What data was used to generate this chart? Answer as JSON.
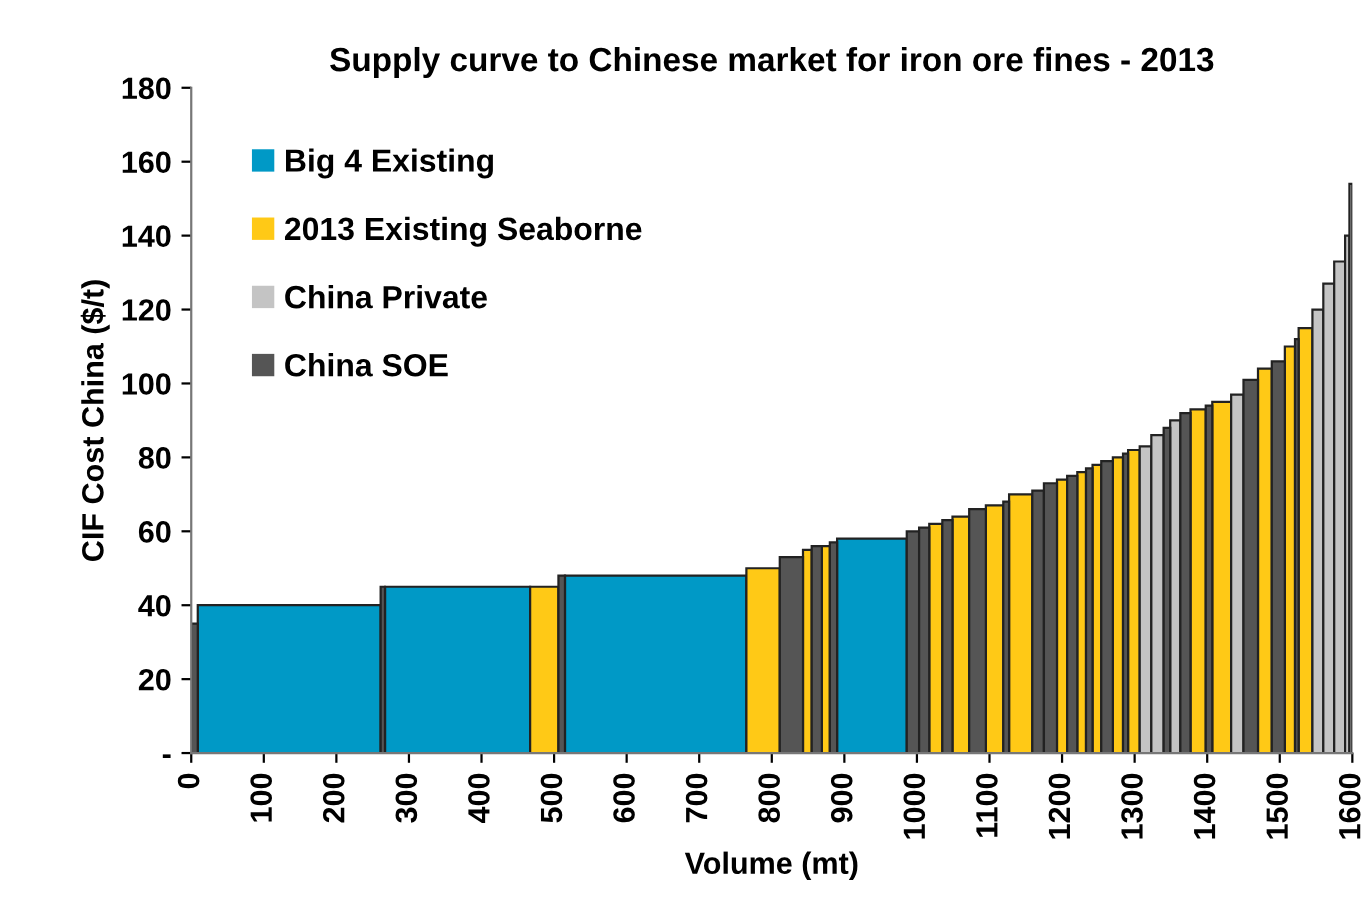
{
  "chart_data": {
    "type": "histogram",
    "title": "Supply curve to Chinese market for iron ore fines - 2013",
    "xlabel": "Volume (mt)",
    "ylabel": "CIF Cost China ($/t)",
    "bins": [
      0,
      9,
      261,
      267,
      467,
      506,
      515,
      765,
      811,
      843,
      855,
      869,
      880,
      890,
      986,
      1003,
      1017,
      1035,
      1049,
      1072,
      1095,
      1119,
      1127,
      1159,
      1175,
      1193,
      1207,
      1221,
      1233,
      1242,
      1254,
      1270,
      1284,
      1291,
      1307,
      1323,
      1340,
      1349,
      1363,
      1377,
      1398,
      1407,
      1433,
      1450,
      1470,
      1489,
      1507,
      1521,
      1526,
      1545,
      1560,
      1575,
      1590,
      1596,
      1600
    ],
    "series": [
      {
        "name": "Big 4 Existing",
        "color": "#0099c6",
        "values": [
          null,
          40,
          null,
          45,
          null,
          null,
          48,
          null,
          null,
          null,
          null,
          null,
          null,
          58,
          null,
          null,
          null,
          null,
          null,
          null,
          null,
          null,
          null,
          null,
          null,
          null,
          null,
          null,
          null,
          null,
          null,
          null,
          null,
          null,
          null,
          null,
          null,
          null,
          null,
          null,
          null,
          null,
          null,
          null,
          null,
          null,
          null,
          null,
          null,
          null,
          null,
          null,
          null,
          null
        ]
      },
      {
        "name": "2013 Existing Seaborne",
        "color": "#ffc916",
        "values": [
          null,
          null,
          null,
          null,
          45,
          null,
          null,
          50,
          null,
          55,
          null,
          56,
          null,
          null,
          null,
          null,
          62,
          null,
          64,
          null,
          67,
          null,
          70,
          null,
          null,
          74,
          null,
          76,
          null,
          78,
          null,
          80,
          null,
          82,
          null,
          null,
          null,
          null,
          null,
          93,
          null,
          95,
          null,
          null,
          104,
          null,
          110,
          null,
          115,
          null,
          null,
          null,
          null,
          null
        ]
      },
      {
        "name": "China Private",
        "color": "#c4c4c4",
        "values": [
          null,
          null,
          null,
          null,
          null,
          null,
          null,
          null,
          null,
          null,
          null,
          null,
          null,
          null,
          null,
          null,
          null,
          null,
          null,
          null,
          null,
          null,
          null,
          null,
          null,
          null,
          null,
          null,
          null,
          null,
          null,
          null,
          null,
          null,
          83,
          86,
          null,
          90,
          null,
          null,
          null,
          null,
          97,
          null,
          null,
          null,
          null,
          null,
          null,
          120,
          127,
          133,
          140,
          154
        ]
      },
      {
        "name": "China SOE",
        "color": "#555555",
        "values": [
          35,
          null,
          45,
          null,
          null,
          48,
          null,
          null,
          53,
          null,
          56,
          null,
          57,
          null,
          60,
          61,
          null,
          63,
          null,
          66,
          null,
          68,
          null,
          71,
          73,
          null,
          75,
          null,
          77,
          null,
          79,
          null,
          81,
          null,
          null,
          null,
          88,
          null,
          92,
          null,
          94,
          null,
          null,
          101,
          null,
          106,
          null,
          112,
          null,
          null,
          null,
          null,
          null,
          null
        ]
      }
    ],
    "xlim": [
      0,
      1600
    ],
    "xticks": [
      0,
      100,
      200,
      300,
      400,
      500,
      600,
      700,
      800,
      900,
      1000,
      1100,
      1200,
      1300,
      1400,
      1500,
      1600
    ],
    "ylim": [
      0,
      180
    ],
    "yticks": [
      {
        "value": 0,
        "label": "-"
      },
      20,
      40,
      60,
      80,
      100,
      120,
      140,
      160,
      180
    ],
    "grid": false,
    "legend": "top left"
  }
}
